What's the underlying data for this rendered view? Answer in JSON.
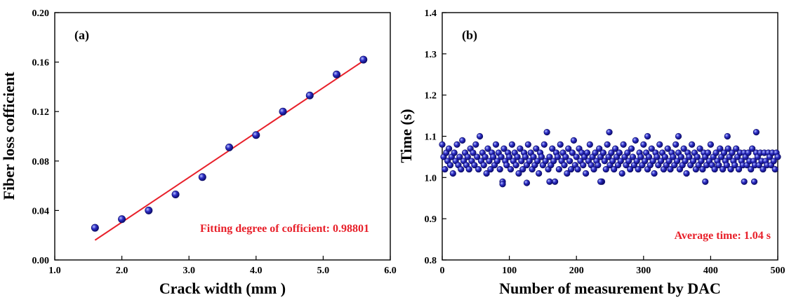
{
  "chart_data": [
    {
      "type": "scatter",
      "panel_label": "(a)",
      "xlabel": "Crack width (mm )",
      "ylabel": "Fiber loss cofficient",
      "xlim": [
        1.0,
        6.0
      ],
      "ylim": [
        0.0,
        0.2
      ],
      "xticks": [
        1.0,
        2.0,
        3.0,
        4.0,
        5.0,
        6.0
      ],
      "xtick_labels": [
        "1.0",
        "2.0",
        "3.0",
        "4.0",
        "5.0",
        "6.0"
      ],
      "yticks": [
        0.0,
        0.04,
        0.08,
        0.12,
        0.16,
        0.2
      ],
      "ytick_labels": [
        "0.00",
        "0.04",
        "0.08",
        "0.12",
        "0.16",
        "0.20"
      ],
      "grid": false,
      "points": {
        "x": [
          1.6,
          2.0,
          2.4,
          2.8,
          3.2,
          3.6,
          4.0,
          4.4,
          4.8,
          5.2,
          5.6
        ],
        "y": [
          0.026,
          0.033,
          0.04,
          0.053,
          0.067,
          0.091,
          0.101,
          0.12,
          0.133,
          0.15,
          0.162
        ]
      },
      "fit_line": {
        "x": [
          1.6,
          5.6
        ],
        "y": [
          0.016,
          0.161
        ]
      },
      "annotation": "Fitting degree of cofficient: 0.98801",
      "colors": {
        "marker": "#1a1aa8",
        "fit": "#e8202a",
        "annotation": "#e8202a"
      }
    },
    {
      "type": "scatter",
      "panel_label": "(b)",
      "xlabel": "Number of measurement by DAC",
      "ylabel": "Time (s)",
      "xlim": [
        0,
        500
      ],
      "ylim": [
        0.8,
        1.4
      ],
      "xticks": [
        0,
        100,
        200,
        300,
        400,
        500
      ],
      "xtick_labels": [
        "0",
        "100",
        "200",
        "300",
        "400",
        "500"
      ],
      "yticks": [
        0.8,
        0.9,
        1.0,
        1.1,
        1.2,
        1.3,
        1.4
      ],
      "ytick_labels": [
        "0.8",
        "0.9",
        "1.0",
        "1.1",
        "1.2",
        "1.3",
        "1.4"
      ],
      "grid": false,
      "points": {
        "x": [
          0,
          2,
          4,
          6,
          8,
          10,
          12,
          14,
          16,
          18,
          20,
          22,
          24,
          26,
          28,
          30,
          32,
          34,
          36,
          38,
          40,
          42,
          44,
          46,
          48,
          50,
          52,
          54,
          56,
          58,
          60,
          62,
          64,
          66,
          68,
          70,
          72,
          74,
          76,
          78,
          80,
          82,
          84,
          86,
          88,
          90,
          92,
          94,
          96,
          98,
          100,
          102,
          104,
          106,
          108,
          110,
          112,
          114,
          116,
          118,
          120,
          122,
          124,
          126,
          128,
          130,
          132,
          134,
          136,
          138,
          140,
          142,
          144,
          146,
          148,
          150,
          152,
          154,
          156,
          158,
          160,
          162,
          164,
          166,
          168,
          170,
          172,
          174,
          176,
          178,
          180,
          182,
          184,
          186,
          188,
          190,
          192,
          194,
          196,
          198,
          200,
          202,
          204,
          206,
          208,
          210,
          212,
          214,
          216,
          218,
          220,
          222,
          224,
          226,
          228,
          230,
          232,
          234,
          236,
          238,
          240,
          242,
          244,
          246,
          248,
          250,
          252,
          254,
          256,
          258,
          260,
          262,
          264,
          266,
          268,
          270,
          272,
          274,
          276,
          278,
          280,
          282,
          284,
          286,
          288,
          290,
          292,
          294,
          296,
          298,
          300,
          302,
          304,
          306,
          308,
          310,
          312,
          314,
          316,
          318,
          320,
          322,
          324,
          326,
          328,
          330,
          332,
          334,
          336,
          338,
          340,
          342,
          344,
          346,
          348,
          350,
          352,
          354,
          356,
          358,
          360,
          362,
          364,
          366,
          368,
          370,
          372,
          374,
          376,
          378,
          380,
          382,
          384,
          386,
          388,
          390,
          392,
          394,
          396,
          398,
          400,
          402,
          404,
          406,
          408,
          410,
          412,
          414,
          416,
          418,
          420,
          422,
          424,
          426,
          428,
          430,
          432,
          434,
          436,
          438,
          440,
          442,
          444,
          446,
          448,
          450,
          452,
          454,
          456,
          458,
          460,
          462,
          464,
          466,
          468,
          470,
          472,
          474,
          476,
          478,
          480,
          482,
          484,
          486,
          488,
          490,
          492,
          494,
          496,
          498,
          500,
          90,
          126,
          160,
          236,
          249,
          306,
          352,
          392,
          425,
          450,
          465,
          468
        ],
        "y": [
          1.08,
          1.05,
          1.02,
          1.06,
          1.04,
          1.07,
          1.03,
          1.05,
          1.01,
          1.06,
          1.04,
          1.08,
          1.03,
          1.05,
          1.02,
          1.09,
          1.04,
          1.06,
          1.03,
          1.05,
          1.02,
          1.07,
          1.04,
          1.06,
          1.03,
          1.08,
          1.05,
          1.02,
          1.1,
          1.04,
          1.06,
          1.03,
          1.05,
          1.01,
          1.07,
          1.04,
          1.02,
          1.06,
          1.05,
          1.03,
          1.08,
          1.04,
          1.06,
          1.02,
          1.05,
          0.99,
          1.07,
          1.04,
          1.03,
          1.06,
          1.05,
          1.02,
          1.08,
          1.04,
          1.06,
          1.03,
          1.05,
          1.01,
          1.07,
          1.04,
          1.02,
          1.06,
          1.05,
          1.03,
          1.08,
          1.04,
          1.06,
          1.02,
          1.05,
          1.03,
          1.07,
          1.04,
          1.01,
          1.06,
          1.05,
          1.03,
          1.08,
          1.04,
          1.11,
          1.02,
          1.05,
          1.03,
          1.07,
          1.04,
          0.99,
          1.06,
          1.05,
          1.02,
          1.08,
          1.04,
          1.06,
          1.03,
          1.05,
          1.01,
          1.07,
          1.04,
          1.02,
          1.06,
          1.09,
          1.03,
          1.05,
          1.02,
          1.07,
          1.04,
          1.06,
          1.03,
          1.05,
          1.01,
          1.06,
          1.04,
          1.08,
          1.03,
          1.05,
          1.02,
          1.06,
          1.04,
          1.03,
          1.07,
          1.05,
          0.99,
          1.06,
          1.04,
          1.02,
          1.08,
          1.05,
          1.03,
          1.06,
          1.04,
          1.02,
          1.07,
          1.05,
          1.03,
          1.06,
          1.04,
          1.01,
          1.08,
          1.05,
          1.03,
          1.06,
          1.04,
          1.02,
          1.07,
          1.05,
          1.03,
          1.09,
          1.04,
          1.02,
          1.06,
          1.05,
          1.03,
          1.08,
          1.04,
          1.06,
          1.02,
          1.05,
          1.03,
          1.07,
          1.04,
          1.01,
          1.06,
          1.05,
          1.03,
          1.08,
          1.04,
          1.06,
          1.02,
          1.05,
          1.03,
          1.07,
          1.04,
          1.02,
          1.06,
          1.05,
          1.03,
          1.08,
          1.04,
          1.06,
          1.02,
          1.05,
          1.03,
          1.07,
          1.04,
          1.01,
          1.06,
          1.05,
          1.03,
          1.08,
          1.04,
          1.06,
          1.02,
          1.05,
          1.03,
          1.07,
          1.04,
          1.02,
          1.06,
          1.05,
          1.03,
          1.06,
          1.04,
          1.08,
          1.03,
          1.05,
          1.02,
          1.06,
          1.04,
          1.03,
          1.07,
          1.05,
          1.02,
          1.06,
          1.04,
          1.03,
          1.07,
          1.05,
          1.02,
          1.06,
          1.04,
          1.03,
          1.07,
          1.05,
          1.02,
          1.06,
          1.04,
          1.03,
          1.06,
          1.05,
          1.03,
          1.06,
          1.04,
          1.02,
          1.07,
          1.04,
          1.03,
          1.06,
          1.05,
          1.03,
          1.06,
          1.04,
          1.02,
          1.06,
          1.04,
          1.03,
          1.06,
          1.05,
          1.03,
          1.06,
          1.04,
          1.02,
          1.06,
          1.05,
          0.984,
          0.987,
          0.99,
          0.99,
          1.11,
          1.1,
          1.1,
          0.99,
          1.1,
          0.99,
          0.99,
          1.11
        ]
      },
      "annotation": "Average time: 1.04 s",
      "colors": {
        "marker": "#1a1aa8",
        "annotation": "#e8202a"
      }
    }
  ]
}
